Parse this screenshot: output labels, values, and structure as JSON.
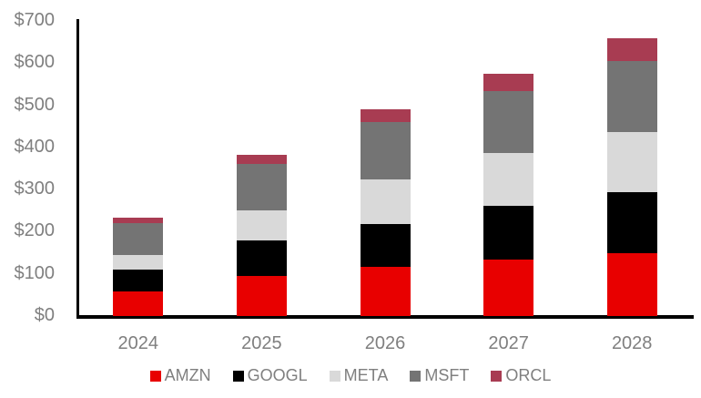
{
  "chart_data": {
    "type": "bar",
    "stacked": true,
    "title": "",
    "xlabel": "",
    "ylabel": "",
    "categories": [
      "2024",
      "2025",
      "2026",
      "2027",
      "2028"
    ],
    "series": [
      {
        "name": "AMZN",
        "color": "#E80000",
        "values": [
          58,
          95,
          116,
          133,
          150
        ]
      },
      {
        "name": "GOOGL",
        "color": "#000000",
        "values": [
          52,
          85,
          103,
          129,
          144
        ]
      },
      {
        "name": "META",
        "color": "#D9D9D9",
        "values": [
          35,
          71,
          106,
          124,
          143
        ]
      },
      {
        "name": "MSFT",
        "color": "#747474",
        "values": [
          76,
          109,
          135,
          147,
          167
        ]
      },
      {
        "name": "ORCL",
        "color": "#A83C52",
        "values": [
          13,
          22,
          31,
          41,
          54
        ]
      }
    ],
    "stack_totals": [
      234,
      382,
      491,
      574,
      658
    ],
    "ylim": [
      0,
      700
    ],
    "y_ticks": [
      {
        "value": 0,
        "label": "$0"
      },
      {
        "value": 100,
        "label": "$100"
      },
      {
        "value": 200,
        "label": "$200"
      },
      {
        "value": 300,
        "label": "$300"
      },
      {
        "value": 400,
        "label": "$400"
      },
      {
        "value": 500,
        "label": "$500"
      },
      {
        "value": 600,
        "label": "$600"
      },
      {
        "value": 700,
        "label": "$700"
      }
    ],
    "grid": false,
    "legend_position": "bottom",
    "colors": {
      "axis_line": "#000000",
      "tick_label": "#7F7F7F",
      "legend_label": "#7F7F7F",
      "background": "#FFFFFF"
    }
  }
}
